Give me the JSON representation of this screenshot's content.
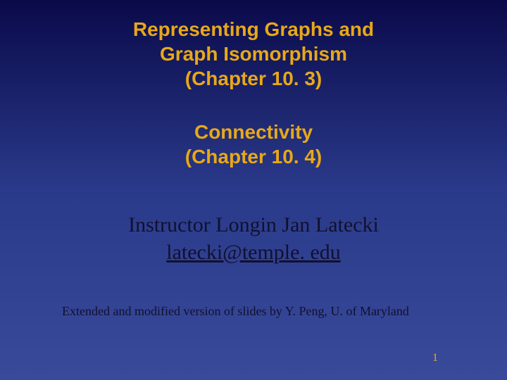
{
  "slide": {
    "background": {
      "gradient_top": "#0a0a4a",
      "gradient_mid": "#2a3a8a",
      "gradient_bottom": "#3a4a9a"
    },
    "title": {
      "line1": "Representing Graphs and",
      "line2": "Graph Isomorphism",
      "line3": "(Chapter 10. 3)",
      "color": "#e8a818",
      "font_family": "Comic Sans MS",
      "font_size_pt": 21,
      "font_weight": "bold"
    },
    "subtitle": {
      "line1": "Connectivity",
      "line2": "(Chapter 10. 4)",
      "color": "#e8a818",
      "font_family": "Comic Sans MS",
      "font_size_pt": 21,
      "font_weight": "bold"
    },
    "instructor": {
      "name_line": "Instructor Longin Jan Latecki",
      "email": "latecki@temple. edu",
      "color": "#101030",
      "font_family": "Times New Roman",
      "font_size_pt": 22
    },
    "footer": {
      "text": "Extended and modified version of slides by Y. Peng, U. of Maryland",
      "color": "#101030",
      "font_family": "Times New Roman",
      "font_size_pt": 13
    },
    "page_number": {
      "value": "1",
      "color": "#e8a818",
      "font_family": "Times New Roman",
      "font_size_pt": 12
    }
  }
}
